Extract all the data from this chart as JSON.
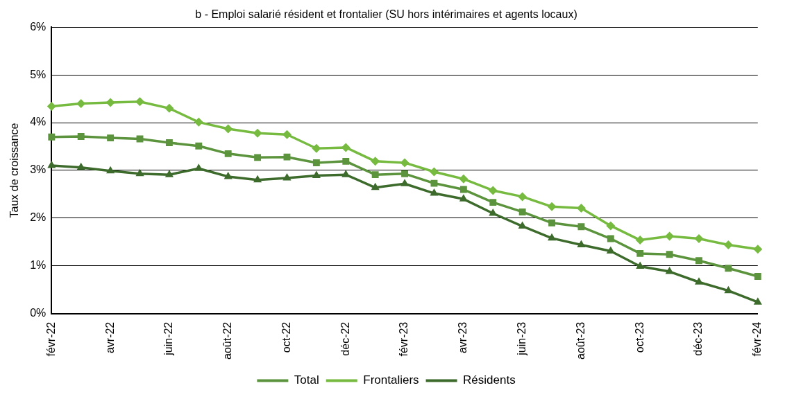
{
  "chart_data": {
    "type": "line",
    "title": "b - Emploi salarié résident et frontalier (SU hors intérimaires et agents locaux)",
    "ylabel": "Taux de croissance",
    "categories": [
      "févr-22",
      null,
      "avr-22",
      null,
      "juin-22",
      null,
      "août-22",
      null,
      "oct-22",
      null,
      "déc-22",
      null,
      "févr-23",
      null,
      "avr-23",
      null,
      "juin-23",
      null,
      "août-23",
      null,
      "oct-23",
      null,
      "déc-23",
      null,
      "févr-24"
    ],
    "ylim": [
      0,
      6
    ],
    "yticks": [
      {
        "value": 0,
        "label": "0%"
      },
      {
        "value": 1,
        "label": "1%"
      },
      {
        "value": 2,
        "label": "2%"
      },
      {
        "value": 3,
        "label": "3%"
      },
      {
        "value": 4,
        "label": "4%"
      },
      {
        "value": 5,
        "label": "5%"
      },
      {
        "value": 6,
        "label": "6%"
      }
    ],
    "grid": "y",
    "legend": "bottom",
    "line_style": "solid",
    "series": [
      {
        "name": "Total",
        "color": "#5b943c",
        "marker": "square",
        "values": [
          3.7,
          3.71,
          3.68,
          3.66,
          3.58,
          3.51,
          3.35,
          3.27,
          3.28,
          3.16,
          3.19,
          2.91,
          2.93,
          2.73,
          2.6,
          2.33,
          2.13,
          1.9,
          1.82,
          1.57,
          1.26,
          1.24,
          1.11,
          0.95,
          0.78
        ]
      },
      {
        "name": "Frontaliers",
        "color": "#76bb40",
        "marker": "diamond",
        "values": [
          4.34,
          4.4,
          4.42,
          4.44,
          4.3,
          4.01,
          3.87,
          3.78,
          3.75,
          3.46,
          3.48,
          3.19,
          3.16,
          2.97,
          2.82,
          2.58,
          2.45,
          2.24,
          2.21,
          1.84,
          1.54,
          1.62,
          1.57,
          1.44,
          1.35
        ]
      },
      {
        "name": "Résidents",
        "color": "#3d6b2c",
        "marker": "triangle",
        "values": [
          3.1,
          3.06,
          2.99,
          2.93,
          2.91,
          3.04,
          2.87,
          2.8,
          2.84,
          2.89,
          2.91,
          2.64,
          2.72,
          2.52,
          2.4,
          2.1,
          1.83,
          1.58,
          1.44,
          1.31,
          0.99,
          0.88,
          0.66,
          0.48,
          0.24
        ]
      }
    ]
  }
}
